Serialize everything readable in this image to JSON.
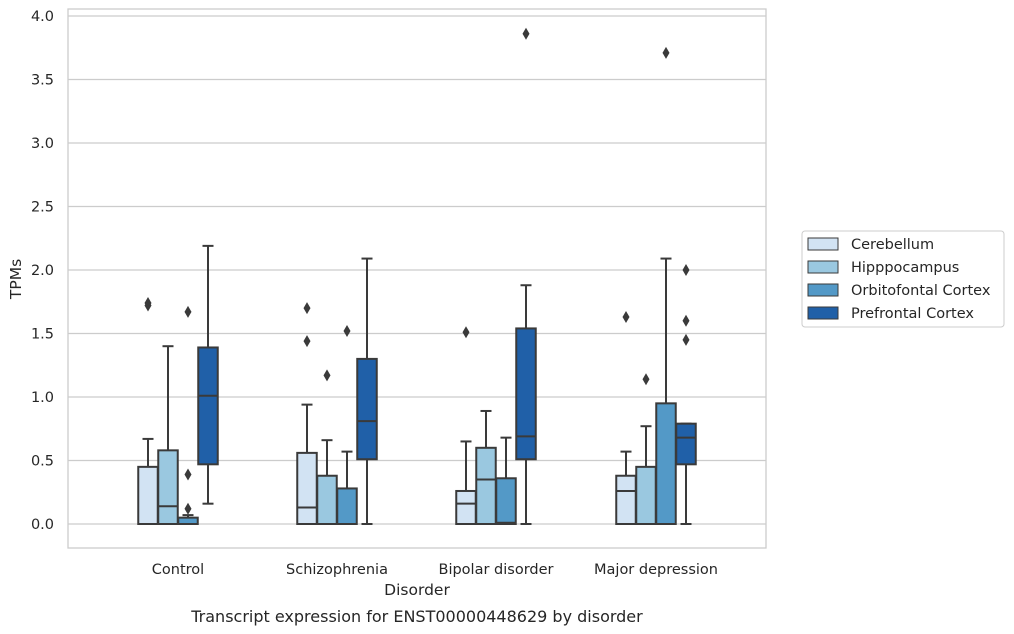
{
  "chart_data": {
    "type": "box",
    "title": "Transcript expression for ENST00000448629 by disorder",
    "xlabel": "Disorder",
    "ylabel": "TPMs",
    "ylim": [
      -0.18,
      4.06
    ],
    "yticks": [
      "0.0",
      "0.5",
      "1.0",
      "1.5",
      "2.0",
      "2.5",
      "3.0",
      "3.5",
      "4.0"
    ],
    "grid": true,
    "legend_position": "right",
    "categories": [
      "Control",
      "Schizophrenia",
      "Bipolar disorder",
      "Major depression"
    ],
    "series": [
      {
        "name": "Cerebellum",
        "color": "#d2e3f3",
        "boxes": [
          {
            "whisker_low": 0.0,
            "q1": 0.0,
            "median": 0.0,
            "q3": 0.45,
            "whisker_high": 0.67,
            "outliers": [
              1.72,
              1.74
            ]
          },
          {
            "whisker_low": 0.0,
            "q1": 0.0,
            "median": 0.13,
            "q3": 0.56,
            "whisker_high": 0.94,
            "outliers": [
              1.44,
              1.7
            ]
          },
          {
            "whisker_low": 0.0,
            "q1": 0.0,
            "median": 0.16,
            "q3": 0.26,
            "whisker_high": 0.65,
            "outliers": [
              1.51
            ]
          },
          {
            "whisker_low": 0.0,
            "q1": 0.0,
            "median": 0.26,
            "q3": 0.38,
            "whisker_high": 0.57,
            "outliers": [
              1.63
            ]
          }
        ]
      },
      {
        "name": "Hipppocampus",
        "color": "#9ac8e0",
        "boxes": [
          {
            "whisker_low": 0.0,
            "q1": 0.0,
            "median": 0.14,
            "q3": 0.58,
            "whisker_high": 1.4,
            "outliers": []
          },
          {
            "whisker_low": 0.0,
            "q1": 0.0,
            "median": 0.0,
            "q3": 0.38,
            "whisker_high": 0.66,
            "outliers": [
              1.17
            ]
          },
          {
            "whisker_low": 0.0,
            "q1": 0.0,
            "median": 0.35,
            "q3": 0.6,
            "whisker_high": 0.89,
            "outliers": []
          },
          {
            "whisker_low": 0.0,
            "q1": 0.0,
            "median": 0.0,
            "q3": 0.45,
            "whisker_high": 0.77,
            "outliers": [
              1.14
            ]
          }
        ]
      },
      {
        "name": "Orbitofontal Cortex",
        "color": "#5399c7",
        "boxes": [
          {
            "whisker_low": 0.0,
            "q1": 0.0,
            "median": 0.0,
            "q3": 0.05,
            "whisker_high": 0.07,
            "outliers": [
              0.12,
              0.39,
              1.67
            ]
          },
          {
            "whisker_low": 0.0,
            "q1": 0.0,
            "median": 0.0,
            "q3": 0.28,
            "whisker_high": 0.57,
            "outliers": [
              1.52
            ]
          },
          {
            "whisker_low": 0.0,
            "q1": 0.0,
            "median": 0.01,
            "q3": 0.36,
            "whisker_high": 0.68,
            "outliers": []
          },
          {
            "whisker_low": 0.0,
            "q1": 0.0,
            "median": 0.0,
            "q3": 0.95,
            "whisker_high": 2.09,
            "outliers": [
              3.71
            ]
          }
        ]
      },
      {
        "name": "Prefrontal Cortex",
        "color": "#2060a8",
        "boxes": [
          {
            "whisker_low": 0.16,
            "q1": 0.47,
            "median": 1.01,
            "q3": 1.39,
            "whisker_high": 2.19,
            "outliers": []
          },
          {
            "whisker_low": 0.0,
            "q1": 0.51,
            "median": 0.81,
            "q3": 1.3,
            "whisker_high": 2.09,
            "outliers": []
          },
          {
            "whisker_low": 0.0,
            "q1": 0.51,
            "median": 0.69,
            "q3": 1.54,
            "whisker_high": 1.88,
            "outliers": [
              3.86
            ]
          },
          {
            "whisker_low": 0.0,
            "q1": 0.47,
            "median": 0.68,
            "q3": 0.79,
            "whisker_high": 0.79,
            "outliers": [
              1.45,
              1.6,
              2.0
            ]
          }
        ]
      }
    ]
  }
}
